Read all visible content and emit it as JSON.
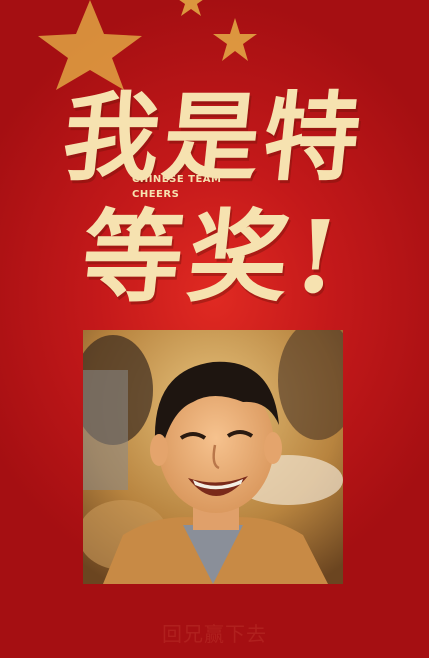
{
  "headline": {
    "line1": "我是特",
    "line2": "等奖!",
    "tagline_line1": "CHINESE TEAM",
    "tagline_line2": "CHEERS"
  },
  "photo": {
    "subject": "smiling-young-man-portrait"
  },
  "footer": {
    "text": "回兄赢下去"
  },
  "colors": {
    "background": "#c4191a",
    "headline": "#f6e2b0",
    "star": "#e8b84a",
    "footer": "#b0201e"
  }
}
